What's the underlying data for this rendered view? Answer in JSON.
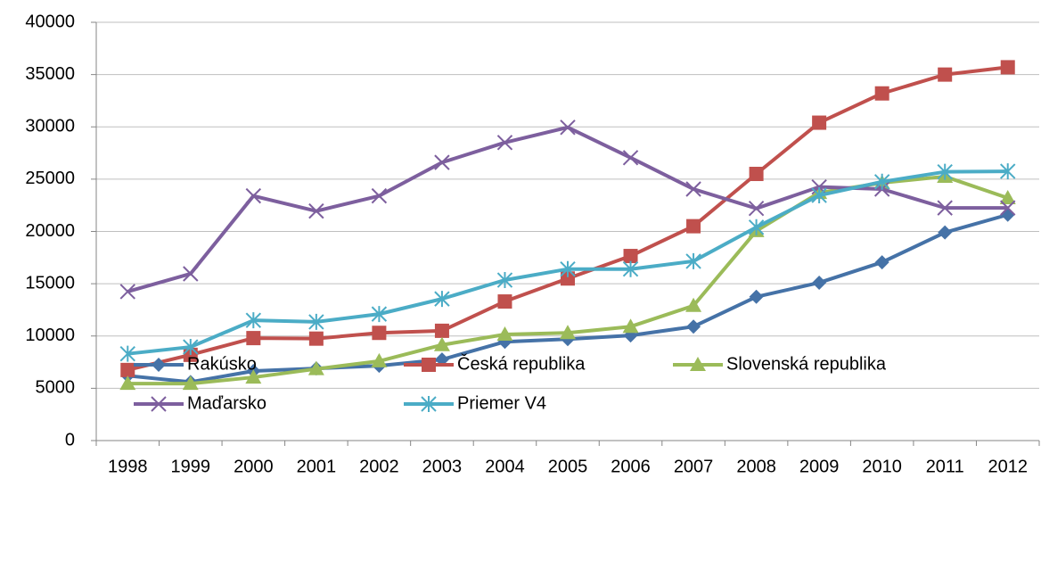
{
  "chart_data": {
    "type": "line",
    "categories": [
      "1998",
      "1999",
      "2000",
      "2001",
      "2002",
      "2003",
      "2004",
      "2005",
      "2006",
      "2007",
      "2008",
      "2009",
      "2010",
      "2011",
      "2012"
    ],
    "series": [
      {
        "name": "Rakúsko",
        "color": "#4572a7",
        "marker": "diamond",
        "values": [
          6200,
          5600,
          6650,
          6900,
          7150,
          7750,
          9450,
          9700,
          10050,
          10900,
          13750,
          15100,
          17050,
          19900,
          21600
        ]
      },
      {
        "name": "Česká republika",
        "color": "#c0504d",
        "marker": "square",
        "values": [
          6750,
          8200,
          9800,
          9750,
          10300,
          10500,
          13300,
          15500,
          17650,
          20500,
          25500,
          30400,
          33200,
          35000,
          35700
        ]
      },
      {
        "name": "Slovenská republika",
        "color": "#9bbb59",
        "marker": "triangle",
        "values": [
          5450,
          5450,
          6050,
          6850,
          7600,
          9150,
          10150,
          10300,
          10900,
          12900,
          20050,
          23700,
          24650,
          25250,
          23200
        ]
      },
      {
        "name": "Maďarsko",
        "color": "#7d5f9e",
        "marker": "x",
        "values": [
          14250,
          15950,
          23400,
          21950,
          23400,
          26600,
          28500,
          29950,
          27050,
          24050,
          22200,
          24250,
          24050,
          22250,
          22250
        ]
      },
      {
        "name": "Priemer V4",
        "color": "#4bacc6",
        "marker": "asterisk",
        "values": [
          8300,
          8950,
          11500,
          11350,
          12100,
          13550,
          15350,
          16400,
          16400,
          17150,
          20400,
          23450,
          24750,
          25700,
          25750
        ]
      }
    ],
    "ylim": [
      0,
      40000
    ],
    "yticks": [
      0,
      5000,
      10000,
      15000,
      20000,
      25000,
      30000,
      35000,
      40000
    ],
    "grid": true,
    "legend": "bottom"
  }
}
